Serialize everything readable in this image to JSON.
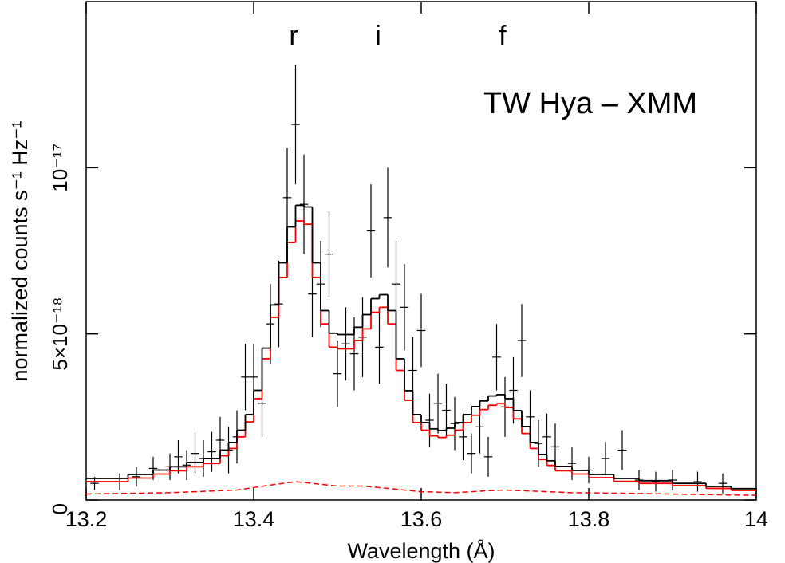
{
  "chart_data": {
    "type": "spectrum",
    "annotations": [
      "r",
      "i",
      "f"
    ],
    "label": "TW Hya – XMM",
    "xlabel": "Wavelength (Å)",
    "ylabel": "normalized counts s⁻¹ Hz⁻¹",
    "xlim": [
      13.2,
      14
    ],
    "xticks": [
      13.2,
      13.4,
      13.6,
      13.8,
      14
    ],
    "ylim": [
      0,
      1.5e-17
    ],
    "yticks": [
      0,
      {
        "value": 5e-18,
        "label": "5×10⁻¹⁸"
      },
      {
        "value": 1e-17,
        "label": "10⁻¹⁷"
      }
    ],
    "models": [
      {
        "color": "#000000",
        "x": [
          13.2,
          13.25,
          13.28,
          13.3,
          13.32,
          13.34,
          13.36,
          13.37,
          13.38,
          13.39,
          13.4,
          13.41,
          13.42,
          13.43,
          13.44,
          13.45,
          13.46,
          13.47,
          13.48,
          13.49,
          13.5,
          13.51,
          13.52,
          13.53,
          13.54,
          13.55,
          13.56,
          13.57,
          13.58,
          13.59,
          13.6,
          13.61,
          13.62,
          13.63,
          13.64,
          13.65,
          13.66,
          13.67,
          13.68,
          13.69,
          13.7,
          13.71,
          13.72,
          13.73,
          13.74,
          13.75,
          13.76,
          13.78,
          13.8,
          13.83,
          13.86,
          13.9,
          13.94,
          13.97
        ],
        "values": [
          6.5e-19,
          7.7e-19,
          9e-19,
          1e-18,
          1.13e-18,
          1.25e-18,
          1.5e-18,
          1.73e-18,
          2.1e-18,
          2.57e-18,
          3.3e-18,
          4.57e-18,
          5.87e-18,
          7.14e-18,
          8.22e-18,
          8.87e-18,
          8.82e-18,
          7.14e-18,
          5.7e-18,
          5.02e-18,
          4.98e-18,
          4.98e-18,
          5.2e-18,
          5.58e-18,
          6.06e-18,
          6.18e-18,
          5.7e-18,
          4.25e-18,
          3.29e-18,
          2.57e-18,
          2.33e-18,
          2.14e-18,
          2.09e-18,
          2.16e-18,
          2.33e-18,
          2.57e-18,
          2.81e-18,
          2.98e-18,
          3.13e-18,
          3.17e-18,
          3.05e-18,
          2.69e-18,
          2.21e-18,
          1.73e-18,
          1.37e-18,
          1.18e-18,
          1.01e-18,
          8.9e-19,
          7.7e-19,
          6.5e-19,
          5.8e-19,
          5e-19,
          4.1e-19,
          3.4e-19
        ]
      },
      {
        "color": "#ff0000",
        "x": [
          13.2,
          13.25,
          13.28,
          13.3,
          13.32,
          13.34,
          13.36,
          13.37,
          13.38,
          13.39,
          13.4,
          13.41,
          13.42,
          13.43,
          13.44,
          13.45,
          13.46,
          13.47,
          13.48,
          13.49,
          13.5,
          13.51,
          13.52,
          13.53,
          13.54,
          13.55,
          13.56,
          13.57,
          13.58,
          13.59,
          13.6,
          13.61,
          13.62,
          13.63,
          13.64,
          13.65,
          13.66,
          13.67,
          13.68,
          13.69,
          13.7,
          13.71,
          13.72,
          13.73,
          13.74,
          13.75,
          13.76,
          13.78,
          13.8,
          13.83,
          13.86,
          13.9,
          13.94,
          13.97
        ],
        "values": [
          5.5e-19,
          6.6e-19,
          7.8e-19,
          8.8e-19,
          1e-18,
          1.1e-18,
          1.33e-18,
          1.55e-18,
          1.9e-18,
          2.35e-18,
          3.05e-18,
          4.25e-18,
          5.5e-18,
          6.7e-18,
          7.75e-18,
          8.4e-18,
          8.3e-18,
          6.7e-18,
          5.3e-18,
          4.6e-18,
          4.55e-18,
          4.55e-18,
          4.8e-18,
          5.15e-18,
          5.65e-18,
          5.8e-18,
          5.3e-18,
          3.9e-18,
          3e-18,
          2.33e-18,
          2.1e-18,
          1.93e-18,
          1.88e-18,
          1.95e-18,
          2.1e-18,
          2.33e-18,
          2.55e-18,
          2.72e-18,
          2.85e-18,
          2.9e-18,
          2.78e-18,
          2.44e-18,
          2e-18,
          1.55e-18,
          1.22e-18,
          1.04e-18,
          8.8e-19,
          7.8e-19,
          6.7e-19,
          5.6e-19,
          5e-19,
          4.3e-19,
          3.5e-19,
          2.9e-19
        ]
      }
    ],
    "component": {
      "color": "#ff0000",
      "x": [
        13.2,
        13.3,
        13.38,
        13.42,
        13.45,
        13.47,
        13.5,
        13.53,
        13.56,
        13.6,
        13.64,
        13.68,
        13.7,
        13.73,
        13.78,
        13.85,
        13.92,
        14.0
      ],
      "values": [
        1.8e-19,
        2.2e-19,
        3e-19,
        4.5e-19,
        5.5e-19,
        5e-19,
        4.2e-19,
        4.2e-19,
        3.5e-19,
        2.5e-19,
        2.2e-19,
        2.8e-19,
        3e-19,
        2.7e-19,
        2.2e-19,
        2e-19,
        1.7e-19,
        1.4e-19
      ]
    },
    "data": {
      "color": "#000000",
      "xerr": 0.005,
      "x": [
        13.21,
        13.24,
        13.26,
        13.28,
        13.3,
        13.31,
        13.32,
        13.33,
        13.34,
        13.35,
        13.36,
        13.37,
        13.38,
        13.39,
        13.4,
        13.41,
        13.42,
        13.43,
        13.44,
        13.45,
        13.46,
        13.47,
        13.48,
        13.49,
        13.5,
        13.51,
        13.52,
        13.53,
        13.54,
        13.55,
        13.56,
        13.57,
        13.58,
        13.59,
        13.6,
        13.61,
        13.62,
        13.63,
        13.64,
        13.65,
        13.66,
        13.67,
        13.68,
        13.69,
        13.7,
        13.71,
        13.72,
        13.73,
        13.74,
        13.75,
        13.76,
        13.78,
        13.8,
        13.82,
        13.84,
        13.86,
        13.88,
        13.9,
        13.93,
        13.96
      ],
      "values": [
        5e-19,
        5.5e-19,
        7e-19,
        9.5e-19,
        1e-18,
        1.3e-18,
        1.05e-18,
        1.4e-18,
        1.25e-18,
        1.45e-18,
        1.8e-18,
        1.5e-18,
        1.9e-18,
        3.7e-18,
        3.7e-18,
        2.9e-18,
        5.3e-18,
        5.9e-18,
        9.1e-18,
        1.13e-17,
        8.9e-18,
        6.2e-18,
        6.5e-18,
        7.4e-18,
        3.8e-18,
        4.7e-18,
        4.4e-18,
        4.9e-18,
        8.1e-18,
        4.6e-18,
        8.5e-18,
        6.5e-18,
        5.8e-18,
        3.9e-18,
        5.1e-18,
        2.4e-18,
        2.9e-18,
        2.7e-18,
        2.3e-18,
        1.9e-18,
        1.4e-18,
        2.2e-18,
        1.3e-18,
        4.3e-18,
        2.8e-18,
        3.3e-18,
        4.8e-18,
        2.5e-18,
        1.7e-18,
        1.9e-18,
        1.6e-18,
        1.1e-18,
        9e-19,
        1.25e-18,
        1.5e-18,
        6e-19,
        5.5e-19,
        6e-19,
        5.5e-19,
        5e-19
      ],
      "errors": [
        2e-19,
        2.5e-19,
        3e-19,
        3.5e-19,
        4e-19,
        5e-19,
        4.5e-19,
        6e-19,
        5.5e-19,
        6e-19,
        7e-19,
        7e-19,
        8e-19,
        1e-18,
        1e-18,
        1e-18,
        1.2e-18,
        1.3e-18,
        1.5e-18,
        1.8e-18,
        1.5e-18,
        1.3e-18,
        1.3e-18,
        1.3e-18,
        1e-18,
        1.1e-18,
        1.1e-18,
        1.2e-18,
        1.4e-18,
        1.1e-18,
        1.5e-18,
        1.3e-18,
        1.3e-18,
        1e-18,
        1.1e-18,
        8e-19,
        9e-19,
        8e-19,
        8e-19,
        7e-19,
        6e-19,
        8e-19,
        6e-19,
        1e-18,
        9e-19,
        1e-18,
        1.1e-18,
        8e-19,
        7e-19,
        7e-19,
        7e-19,
        5e-19,
        4e-19,
        5e-19,
        6e-19,
        3e-19,
        3e-19,
        3e-19,
        3e-19,
        3e-19
      ]
    }
  }
}
